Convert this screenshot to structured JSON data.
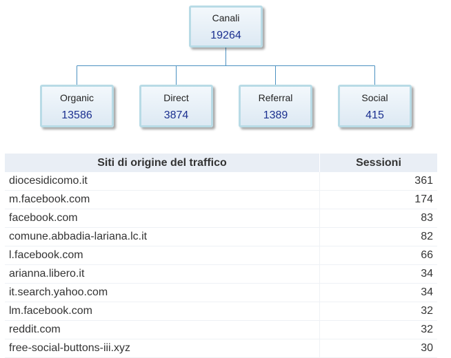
{
  "channels": {
    "root": {
      "label": "Canali",
      "value": "19264"
    },
    "organic": {
      "label": "Organic",
      "value": "13586"
    },
    "direct": {
      "label": "Direct",
      "value": "3874"
    },
    "referral": {
      "label": "Referral",
      "value": "1389"
    },
    "social": {
      "label": "Social",
      "value": "415"
    }
  },
  "table": {
    "headers": {
      "site": "Siti di origine del traffico",
      "sessions": "Sessioni"
    },
    "rows": [
      {
        "site": "diocesidicomo.it",
        "sessions": "361"
      },
      {
        "site": "m.facebook.com",
        "sessions": "174"
      },
      {
        "site": "facebook.com",
        "sessions": "83"
      },
      {
        "site": "comune.abbadia-lariana.lc.it",
        "sessions": "82"
      },
      {
        "site": "l.facebook.com",
        "sessions": "66"
      },
      {
        "site": "arianna.libero.it",
        "sessions": "34"
      },
      {
        "site": "it.search.yahoo.com",
        "sessions": "34"
      },
      {
        "site": "lm.facebook.com",
        "sessions": "32"
      },
      {
        "site": "reddit.com",
        "sessions": "32"
      },
      {
        "site": "free-social-buttons-iii.xyz",
        "sessions": "30"
      }
    ]
  },
  "colors": {
    "node_border": "#b8dbe6",
    "node_value": "#1a2f8f",
    "connector": "#4a90c0",
    "header_bg": "#e9eef5"
  }
}
